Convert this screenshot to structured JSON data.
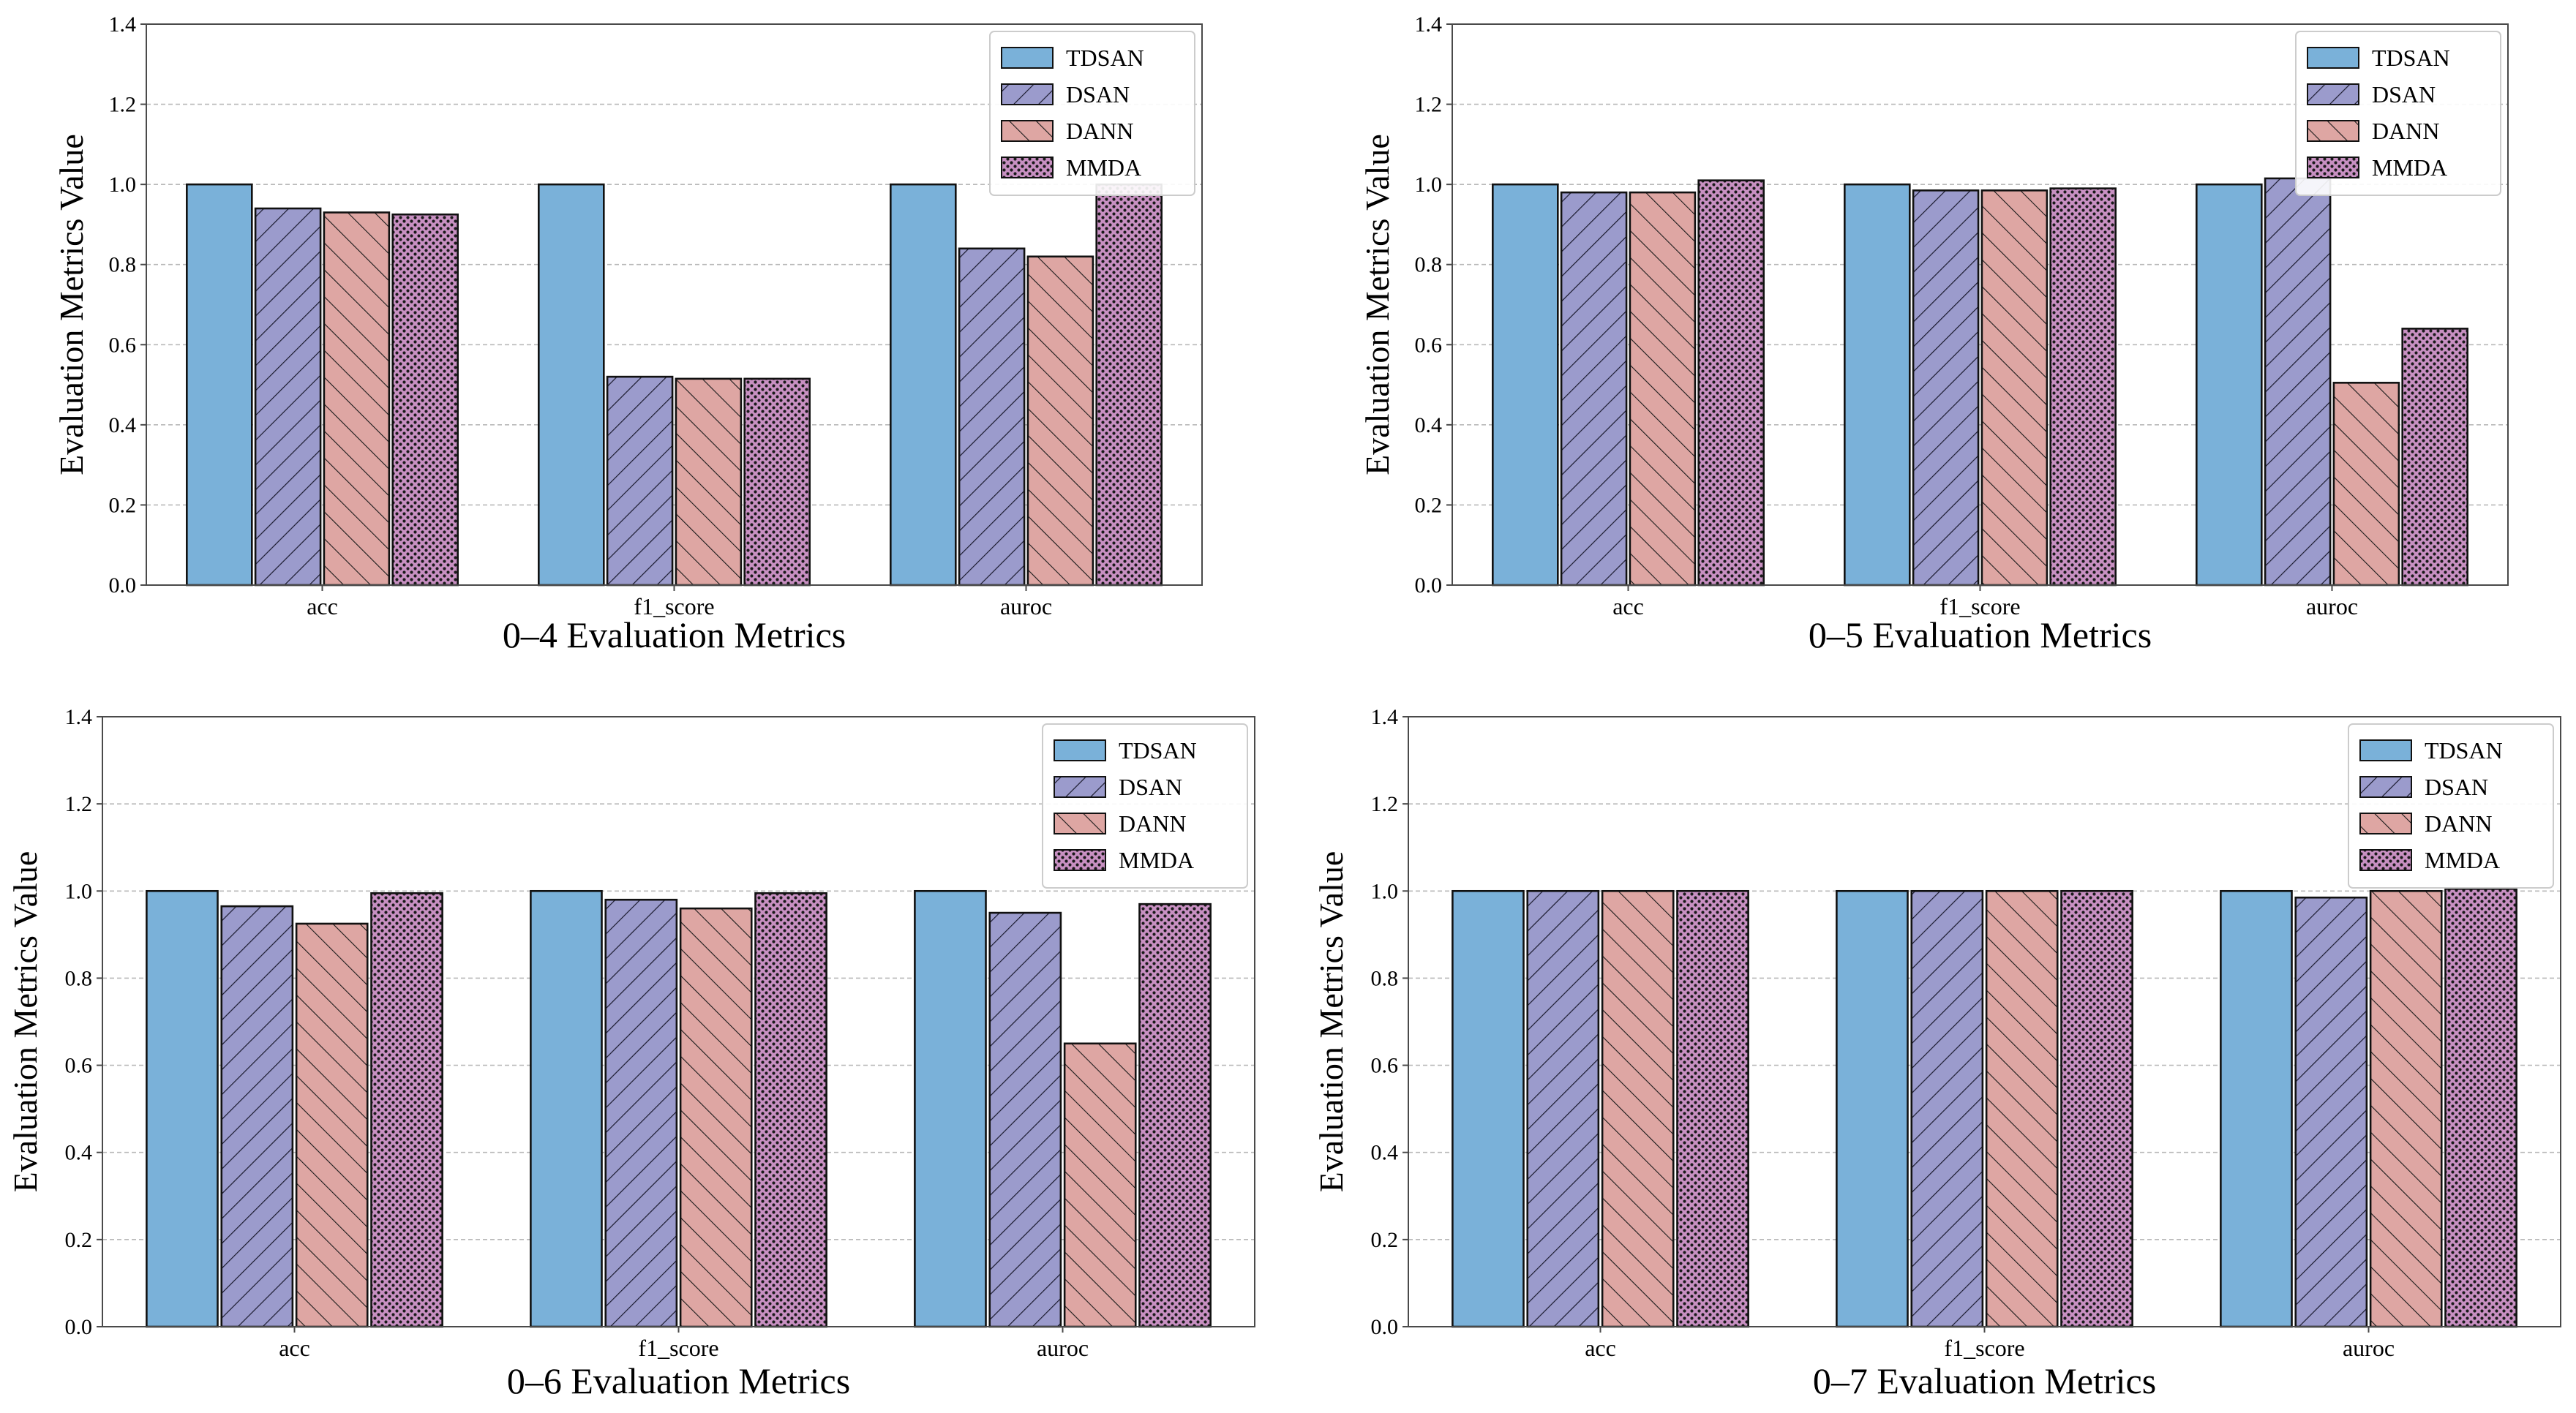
{
  "chart_data": [
    {
      "type": "bar",
      "xlabel": "0–4 Evaluation Metrics",
      "ylabel": "Evaluation Metrics Value",
      "categories": [
        "acc",
        "f1_score",
        "auroc"
      ],
      "ylim": [
        0,
        1.4
      ],
      "yticks": [
        "0.0",
        "0.2",
        "0.4",
        "0.6",
        "0.8",
        "1.0",
        "1.2",
        "1.4"
      ],
      "grid": true,
      "legend_position": "top-right",
      "series": [
        {
          "name": "TDSAN",
          "values": [
            1.0,
            1.0,
            1.0
          ]
        },
        {
          "name": "DSAN",
          "values": [
            0.94,
            0.52,
            0.84
          ]
        },
        {
          "name": "DANN",
          "values": [
            0.93,
            0.515,
            0.82
          ]
        },
        {
          "name": "MMDA",
          "values": [
            0.925,
            0.515,
            1.0
          ]
        }
      ]
    },
    {
      "type": "bar",
      "xlabel": "0–5 Evaluation Metrics",
      "ylabel": "Evaluation Metrics Value",
      "categories": [
        "acc",
        "f1_score",
        "auroc"
      ],
      "ylim": [
        0,
        1.4
      ],
      "yticks": [
        "0.0",
        "0.2",
        "0.4",
        "0.6",
        "0.8",
        "1.0",
        "1.2",
        "1.4"
      ],
      "grid": true,
      "legend_position": "top-right",
      "series": [
        {
          "name": "TDSAN",
          "values": [
            1.0,
            1.0,
            1.0
          ]
        },
        {
          "name": "DSAN",
          "values": [
            0.98,
            0.985,
            1.015
          ]
        },
        {
          "name": "DANN",
          "values": [
            0.98,
            0.985,
            0.505
          ]
        },
        {
          "name": "MMDA",
          "values": [
            1.01,
            0.99,
            0.64
          ]
        }
      ]
    },
    {
      "type": "bar",
      "xlabel": "0–6 Evaluation Metrics",
      "ylabel": "Evaluation Metrics Value",
      "categories": [
        "acc",
        "f1_score",
        "auroc"
      ],
      "ylim": [
        0,
        1.4
      ],
      "yticks": [
        "0.0",
        "0.2",
        "0.4",
        "0.6",
        "0.8",
        "1.0",
        "1.2",
        "1.4"
      ],
      "grid": true,
      "legend_position": "top-right",
      "series": [
        {
          "name": "TDSAN",
          "values": [
            1.0,
            1.0,
            1.0
          ]
        },
        {
          "name": "DSAN",
          "values": [
            0.965,
            0.98,
            0.95
          ]
        },
        {
          "name": "DANN",
          "values": [
            0.925,
            0.96,
            0.65
          ]
        },
        {
          "name": "MMDA",
          "values": [
            0.995,
            0.995,
            0.97
          ]
        }
      ]
    },
    {
      "type": "bar",
      "xlabel": "0–7 Evaluation Metrics",
      "ylabel": "Evaluation Metrics Value",
      "categories": [
        "acc",
        "f1_score",
        "auroc"
      ],
      "ylim": [
        0,
        1.4
      ],
      "yticks": [
        "0.0",
        "0.2",
        "0.4",
        "0.6",
        "0.8",
        "1.0",
        "1.2",
        "1.4"
      ],
      "grid": true,
      "legend_position": "top-right",
      "series": [
        {
          "name": "TDSAN",
          "values": [
            1.0,
            1.0,
            1.0
          ]
        },
        {
          "name": "DSAN",
          "values": [
            1.0,
            1.0,
            0.985
          ]
        },
        {
          "name": "DANN",
          "values": [
            1.0,
            1.0,
            1.0
          ]
        },
        {
          "name": "MMDA",
          "values": [
            1.0,
            1.0,
            1.005
          ]
        }
      ]
    }
  ],
  "series_colors": [
    "#7ab1d9",
    "#9b9bcc",
    "#dea6a3",
    "#c890c2"
  ],
  "series_patterns": [
    "solid",
    "forward-hatch",
    "back-hatch",
    "dots"
  ]
}
